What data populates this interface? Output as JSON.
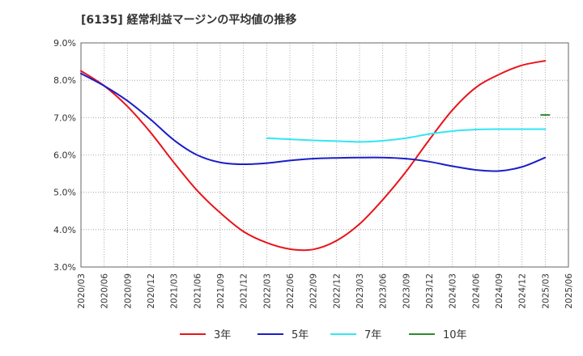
{
  "chart_data": {
    "type": "line",
    "title": "[6135]  経常利益マージンの平均値の推移",
    "xlabel": "",
    "ylabel": "",
    "ylim": [
      3.0,
      9.0
    ],
    "grid": true,
    "legend_position": "bottom",
    "y_ticks": [
      "3.0%",
      "4.0%",
      "5.0%",
      "6.0%",
      "7.0%",
      "8.0%",
      "9.0%"
    ],
    "x_ticks": [
      "2020/03",
      "2020/06",
      "2020/09",
      "2020/12",
      "2021/03",
      "2021/06",
      "2021/09",
      "2021/12",
      "2022/03",
      "2022/06",
      "2022/09",
      "2022/12",
      "2023/03",
      "2023/06",
      "2023/09",
      "2023/12",
      "2024/03",
      "2024/06",
      "2024/09",
      "2024/12",
      "2025/03",
      "2025/06"
    ],
    "series": [
      {
        "name": "3年",
        "color": "#e8141b",
        "points": [
          [
            "2020/03",
            8.25
          ],
          [
            "2020/06",
            7.85
          ],
          [
            "2020/09",
            7.3
          ],
          [
            "2020/12",
            6.6
          ],
          [
            "2021/03",
            5.8
          ],
          [
            "2021/06",
            5.05
          ],
          [
            "2021/09",
            4.45
          ],
          [
            "2021/12",
            3.95
          ],
          [
            "2022/03",
            3.65
          ],
          [
            "2022/06",
            3.48
          ],
          [
            "2022/09",
            3.47
          ],
          [
            "2022/12",
            3.7
          ],
          [
            "2023/03",
            4.15
          ],
          [
            "2023/06",
            4.8
          ],
          [
            "2023/09",
            5.55
          ],
          [
            "2023/12",
            6.4
          ],
          [
            "2024/03",
            7.2
          ],
          [
            "2024/06",
            7.8
          ],
          [
            "2024/09",
            8.15
          ],
          [
            "2024/12",
            8.4
          ],
          [
            "2025/03",
            8.52
          ]
        ]
      },
      {
        "name": "5年",
        "color": "#1a1ec8",
        "points": [
          [
            "2020/03",
            8.18
          ],
          [
            "2020/06",
            7.85
          ],
          [
            "2020/09",
            7.45
          ],
          [
            "2020/12",
            6.95
          ],
          [
            "2021/03",
            6.4
          ],
          [
            "2021/06",
            6.0
          ],
          [
            "2021/09",
            5.8
          ],
          [
            "2021/12",
            5.75
          ],
          [
            "2022/03",
            5.78
          ],
          [
            "2022/06",
            5.85
          ],
          [
            "2022/09",
            5.9
          ],
          [
            "2022/12",
            5.92
          ],
          [
            "2023/03",
            5.93
          ],
          [
            "2023/06",
            5.93
          ],
          [
            "2023/09",
            5.9
          ],
          [
            "2023/12",
            5.82
          ],
          [
            "2024/03",
            5.7
          ],
          [
            "2024/06",
            5.6
          ],
          [
            "2024/09",
            5.57
          ],
          [
            "2024/12",
            5.68
          ],
          [
            "2025/03",
            5.93
          ]
        ]
      },
      {
        "name": "7年",
        "color": "#33e6f2",
        "points": [
          [
            "2022/03",
            6.45
          ],
          [
            "2022/06",
            6.42
          ],
          [
            "2022/09",
            6.39
          ],
          [
            "2022/12",
            6.37
          ],
          [
            "2023/03",
            6.35
          ],
          [
            "2023/06",
            6.38
          ],
          [
            "2023/09",
            6.45
          ],
          [
            "2023/12",
            6.56
          ],
          [
            "2024/03",
            6.64
          ],
          [
            "2024/06",
            6.68
          ],
          [
            "2024/09",
            6.69
          ],
          [
            "2024/12",
            6.69
          ],
          [
            "2025/03",
            6.69
          ]
        ]
      },
      {
        "name": "10年",
        "color": "#2e8b2e",
        "points": [
          [
            "2025/03",
            7.07
          ]
        ]
      }
    ]
  }
}
